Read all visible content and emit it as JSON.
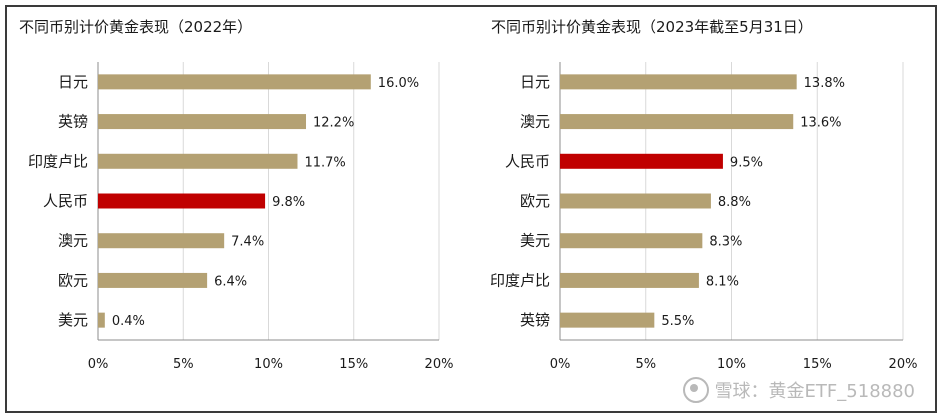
{
  "chart_data": [
    {
      "type": "bar",
      "orientation": "horizontal",
      "title": "不同币别计价黄金表现（2022年）",
      "categories": [
        "日元",
        "英镑",
        "印度卢比",
        "人民币",
        "澳元",
        "欧元",
        "美元"
      ],
      "values": [
        16.0,
        12.2,
        11.7,
        9.8,
        7.4,
        6.4,
        0.4
      ],
      "data_labels": [
        "16.0%",
        "12.2%",
        "11.7%",
        "9.8%",
        "7.4%",
        "6.4%",
        "0.4%"
      ],
      "highlight": "人民币",
      "xlim": [
        0,
        20
      ],
      "xticks": [
        "0%",
        "5%",
        "10%",
        "15%",
        "20%"
      ],
      "grid": "vertical",
      "colors": {
        "bar": "#b4a173",
        "highlight": "#c00000",
        "grid": "#d9d9d9"
      }
    },
    {
      "type": "bar",
      "orientation": "horizontal",
      "title": "不同币别计价黄金表现（2023年截至5月31日）",
      "categories": [
        "日元",
        "澳元",
        "人民币",
        "欧元",
        "美元",
        "印度卢比",
        "英镑"
      ],
      "values": [
        13.8,
        13.6,
        9.5,
        8.8,
        8.3,
        8.1,
        5.5
      ],
      "data_labels": [
        "13.8%",
        "13.6%",
        "9.5%",
        "8.8%",
        "8.3%",
        "8.1%",
        "5.5%"
      ],
      "highlight": "人民币",
      "xlim": [
        0,
        20
      ],
      "xticks": [
        "0%",
        "5%",
        "10%",
        "15%",
        "20%"
      ],
      "grid": "vertical",
      "colors": {
        "bar": "#b4a173",
        "highlight": "#c00000",
        "grid": "#d9d9d9"
      }
    }
  ],
  "watermark": {
    "text": "雪球：黄金ETF_518880",
    "icon": "snowball-logo-icon"
  }
}
